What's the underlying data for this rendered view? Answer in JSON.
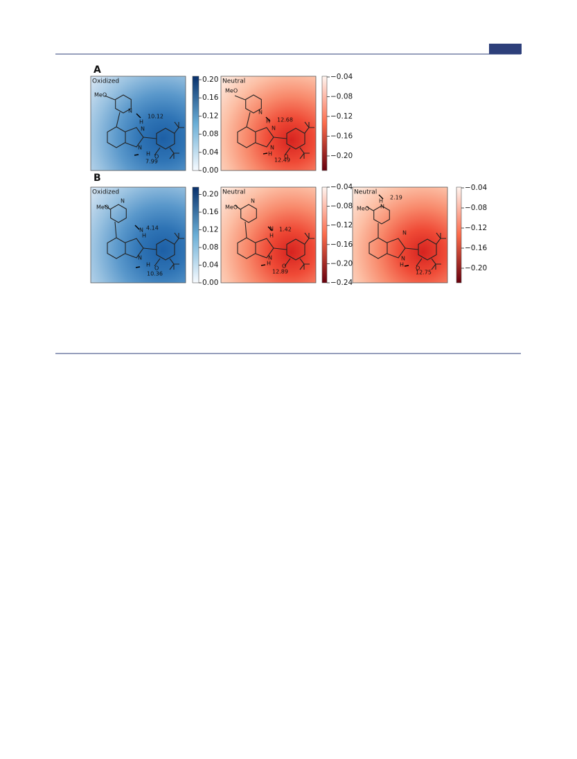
{
  "figure": {
    "panels": [
      {
        "label": "A",
        "plots": [
          {
            "title": "Oxidized",
            "cmap": "Blues",
            "atoms": [
              "MeO",
              "N",
              "H",
              "N",
              "N",
              "H",
              "O"
            ],
            "distances": [
              10.12,
              7.99
            ],
            "colorbar": {
              "lim": [
                0,
                0.2076
              ],
              "ticks": [
                {
                  "value": 0,
                  "label": "0.00"
                },
                0.04,
                0.08,
                0.12,
                0.16,
                {
                  "value": 0.2,
                  "label": "0.20"
                }
              ]
            }
          },
          {
            "title": "Neutral",
            "cmap": "Reds",
            "atoms": [
              "MeO",
              "N",
              "H",
              "N",
              "N",
              "H",
              "O"
            ],
            "distances": [
              12.68,
              12.49
            ],
            "colorbar": {
              "lim": [
                -0.2295,
                -0.0386
              ],
              "ticks": [
                {
                  "value": -0.04,
                  "label": "−0.04"
                },
                {
                  "value": -0.08,
                  "label": "−0.08"
                },
                {
                  "value": -0.12,
                  "label": "−0.12"
                },
                {
                  "value": -0.16,
                  "label": "−0.16"
                },
                {
                  "value": -0.2,
                  "label": "−0.20"
                }
              ]
            }
          }
        ]
      },
      {
        "label": "B",
        "plots": [
          {
            "title": "Oxidized",
            "cmap": "Blues",
            "atoms": [
              "MeO",
              "N",
              "N",
              "H",
              "N",
              "H",
              "O"
            ],
            "distances": [
              4.14,
              10.36
            ],
            "colorbar": {
              "lim": [
                0,
                0.2166
              ],
              "ticks": [
                {
                  "value": 0,
                  "label": "0.00"
                },
                0.04,
                0.08,
                0.12,
                0.16,
                {
                  "value": 0.2,
                  "label": "0.20"
                }
              ]
            }
          },
          {
            "title": "Neutral",
            "cmap": "Reds",
            "atoms": [
              "MeO",
              "N",
              "N",
              "H",
              "N",
              "H",
              "O"
            ],
            "distances": [
              1.42,
              12.89
            ],
            "colorbar": {
              "lim": [
                -0.24,
                -0.04
              ],
              "ticks": [
                {
                  "value": -0.04,
                  "label": "−0.04"
                },
                {
                  "value": -0.08,
                  "label": "−0.08"
                },
                {
                  "value": -0.12,
                  "label": "−0.12"
                },
                {
                  "value": -0.16,
                  "label": "−0.16"
                },
                {
                  "value": -0.2,
                  "label": "−0.20"
                },
                {
                  "value": -0.24,
                  "label": "−0.24"
                }
              ]
            }
          },
          {
            "title": "Neutral",
            "cmap": "Reds",
            "atoms": [
              "MeO",
              "N",
              "H",
              "N",
              "N",
              "H",
              "O"
            ],
            "distances": [
              2.19,
              12.75
            ],
            "colorbar": {
              "lim": [
                -0.229,
                -0.0386
              ],
              "ticks": [
                {
                  "value": -0.04,
                  "label": "−0.04"
                },
                {
                  "value": -0.08,
                  "label": "−0.08"
                },
                {
                  "value": -0.12,
                  "label": "−0.12"
                },
                {
                  "value": -0.16,
                  "label": "−0.16"
                },
                {
                  "value": -0.2,
                  "label": "−0.20"
                }
              ]
            }
          }
        ]
      }
    ]
  }
}
